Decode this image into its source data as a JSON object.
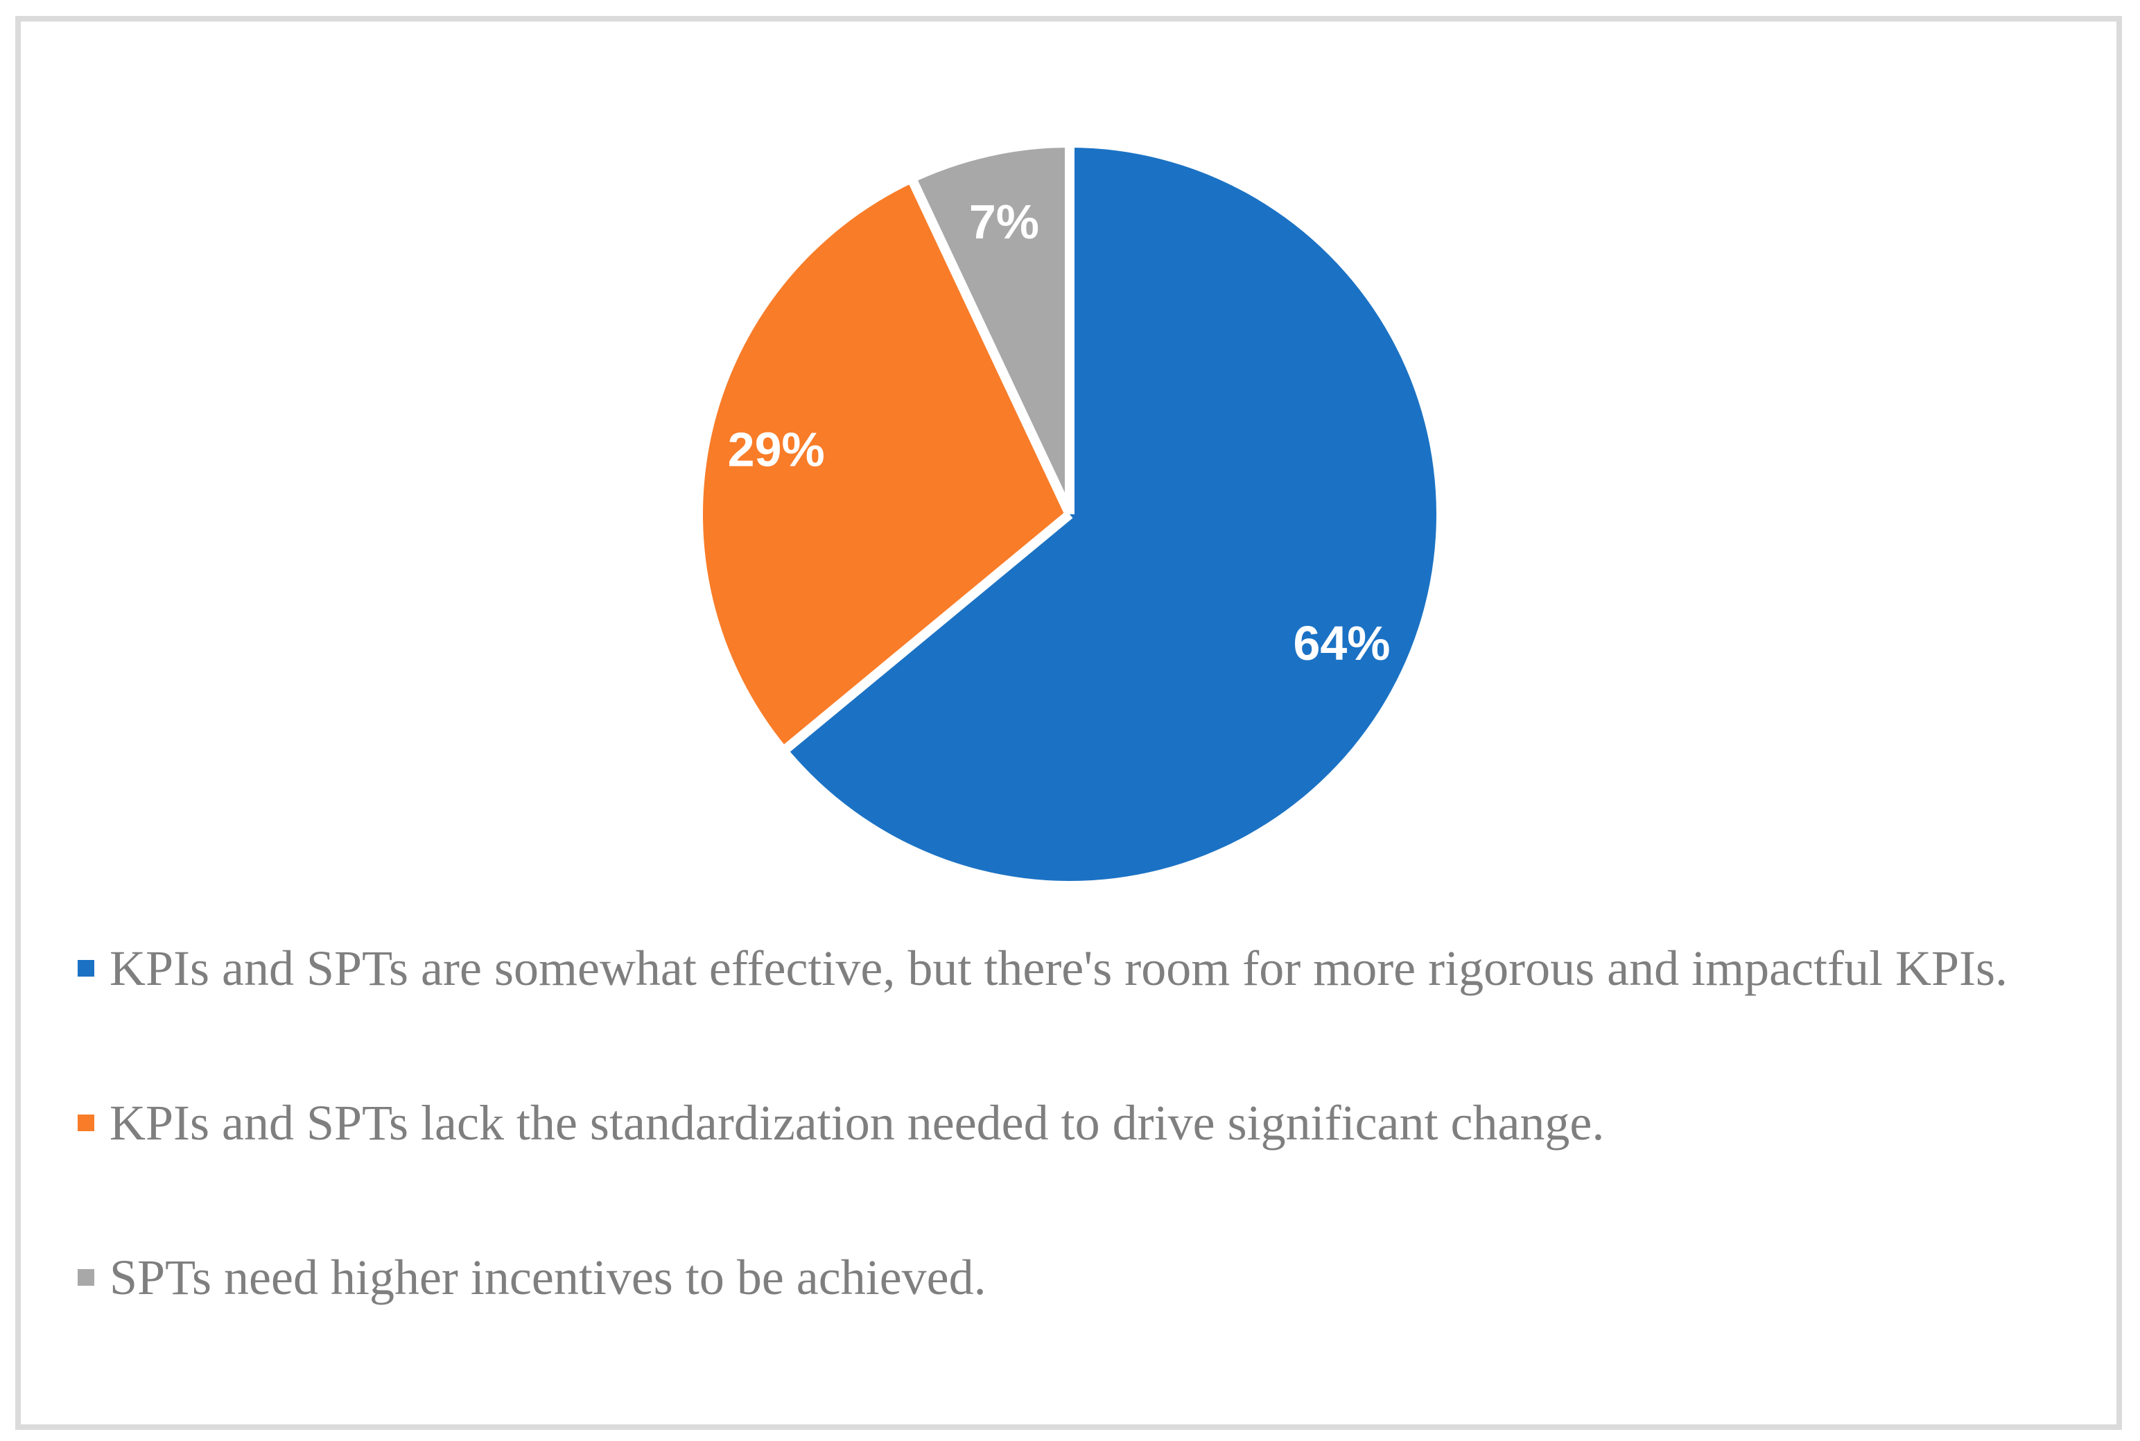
{
  "figure": {
    "background_color": "#FFFFFF",
    "frame_border_color": "#DBDBDB",
    "legend_text_color": "#7F7F7F",
    "data_label_color": "#FFFFFF"
  },
  "chart_data": {
    "type": "pie",
    "title": "",
    "start_angle_deg": 0,
    "direction": "clockwise",
    "data_labels": "percent shown in white bold inside each slice",
    "legend_position": "bottom-left, one item per row",
    "slice_gap": "white borders between slices",
    "categories": [
      "KPIs and SPTs are somewhat effective, but there's room for more rigorous and impactful KPIs.",
      "KPIs and SPTs lack the standardization needed to drive significant change.",
      "SPTs need higher incentives to be achieved."
    ],
    "slices": [
      {
        "category": "KPIs and SPTs are somewhat effective, but there's room for more rigorous and impactful KPIs.",
        "value_pct": 64,
        "data_label": "64%",
        "color": "#1B72C4"
      },
      {
        "category": "KPIs and SPTs lack the standardization needed to drive significant change.",
        "value_pct": 29,
        "data_label": "29%",
        "color": "#F97C28"
      },
      {
        "category": "SPTs need higher incentives to be achieved.",
        "value_pct": 7,
        "data_label": "7%",
        "color": "#A8A8A8"
      }
    ]
  }
}
